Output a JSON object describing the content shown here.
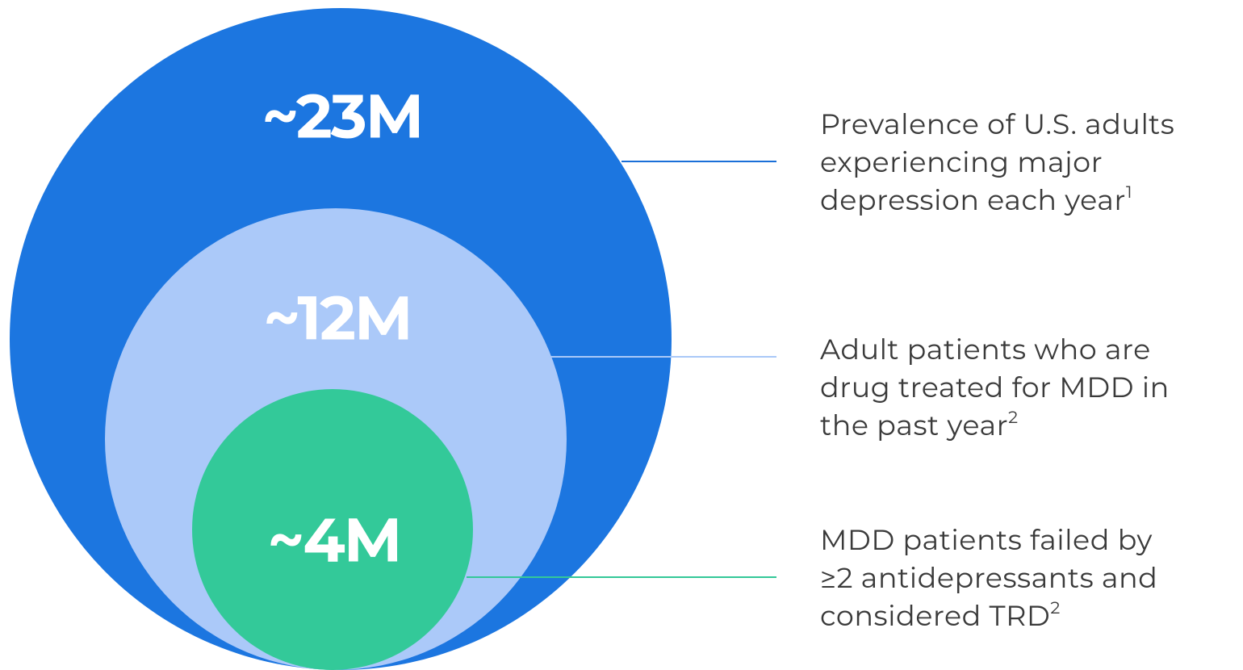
{
  "circles": [
    {
      "value": "~23M",
      "color": "#1c76e0",
      "line_color": "#1a6fd8",
      "description": [
        "Prevalence of U.S. adults",
        "experiencing major",
        "depression each year"
      ],
      "note": "1"
    },
    {
      "value": "~12M",
      "color": "#abc9f9",
      "line_color": "#a9c8f8",
      "description": [
        "Adult patients who are",
        "drug treated for MDD in",
        "the past year"
      ],
      "note": "2"
    },
    {
      "value": "~4M",
      "color": "#33c999",
      "line_color": "#33c898",
      "description": [
        "MDD patients failed by",
        "≥2 antidepressants and",
        "considered TRD"
      ],
      "note": "2"
    }
  ]
}
